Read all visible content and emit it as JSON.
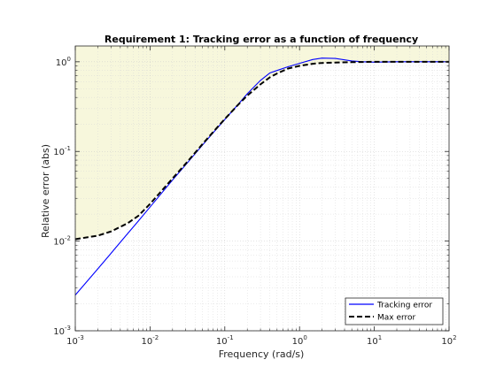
{
  "chart_data": {
    "type": "line",
    "title": "Requirement 1: Tracking error as a function of frequency",
    "xlabel": "Frequency (rad/s)",
    "ylabel": "Relative error (abs)",
    "xscale": "log",
    "yscale": "log",
    "xlim": [
      0.001,
      100
    ],
    "ylim": [
      0.001,
      1.5
    ],
    "x_ticks": [
      {
        "value": 0.001,
        "base": "10",
        "exp": "-3"
      },
      {
        "value": 0.01,
        "base": "10",
        "exp": "-2"
      },
      {
        "value": 0.1,
        "base": "10",
        "exp": "-1"
      },
      {
        "value": 1,
        "base": "10",
        "exp": "0"
      },
      {
        "value": 10,
        "base": "10",
        "exp": "1"
      },
      {
        "value": 100,
        "base": "10",
        "exp": "2"
      }
    ],
    "y_ticks": [
      {
        "value": 0.001,
        "base": "10",
        "exp": "-3"
      },
      {
        "value": 0.01,
        "base": "10",
        "exp": "-2"
      },
      {
        "value": 0.1,
        "base": "10",
        "exp": "-1"
      },
      {
        "value": 1,
        "base": "10",
        "exp": "0"
      }
    ],
    "grid": true,
    "legend_position": "bottom-right",
    "shaded_region_color": "#f7f7dc",
    "series": [
      {
        "name": "Tracking error",
        "color": "#0000ff",
        "style": "solid",
        "x": [
          0.001,
          0.002,
          0.003,
          0.005,
          0.007,
          0.01,
          0.02,
          0.03,
          0.05,
          0.07,
          0.1,
          0.15,
          0.2,
          0.3,
          0.4,
          0.5,
          0.7,
          1,
          1.5,
          2,
          3,
          5,
          7,
          10,
          20,
          50,
          100
        ],
        "y": [
          0.0025,
          0.0049,
          0.0073,
          0.0121,
          0.0168,
          0.024,
          0.048,
          0.071,
          0.117,
          0.162,
          0.227,
          0.333,
          0.44,
          0.62,
          0.75,
          0.8,
          0.88,
          0.96,
          1.06,
          1.1,
          1.09,
          1.02,
          1.0,
          0.99,
          1.0,
          1.0,
          1.0
        ]
      },
      {
        "name": "Max error",
        "color": "#000000",
        "style": "dashed",
        "x": [
          0.001,
          0.002,
          0.003,
          0.005,
          0.007,
          0.01,
          0.02,
          0.03,
          0.05,
          0.07,
          0.1,
          0.15,
          0.2,
          0.3,
          0.4,
          0.5,
          0.7,
          1,
          1.5,
          2,
          3,
          5,
          10,
          20,
          50,
          100
        ],
        "y": [
          0.0105,
          0.0115,
          0.0128,
          0.0158,
          0.0192,
          0.026,
          0.05,
          0.073,
          0.12,
          0.165,
          0.23,
          0.33,
          0.42,
          0.56,
          0.67,
          0.74,
          0.84,
          0.9,
          0.95,
          0.97,
          0.98,
          0.99,
          1.0,
          1.0,
          1.0,
          1.0
        ]
      }
    ]
  }
}
